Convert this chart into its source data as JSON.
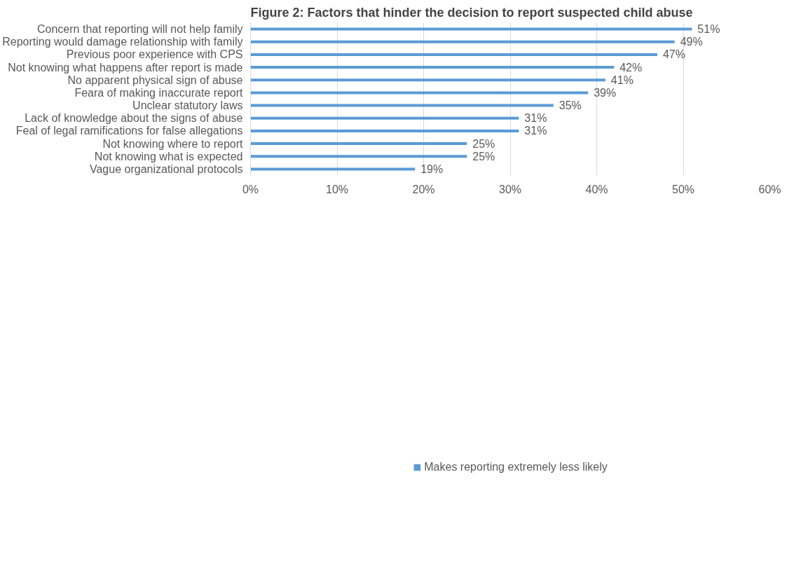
{
  "chart_data": {
    "type": "bar",
    "orientation": "horizontal",
    "title": "Figure 2: Factors that hinder the decision to report suspected child abuse",
    "categories": [
      "Concern that reporting will not help family",
      "Reporting would damage relationship with family",
      "Previous poor experience with CPS",
      "Not knowing what happens after report is made",
      "No apparent physical sign of abuse",
      "Feara of making inaccurate report",
      "Unclear statutory laws",
      "Lack of knowledge about the signs of abuse",
      "Feal of legal ramifications for false allegations",
      "Not knowing where to report",
      "Not knowing what is expected",
      "Vague organizational protocols"
    ],
    "series": [
      {
        "name": "Makes reporting extremely less likely",
        "color": "#5b9bd5",
        "values": [
          51,
          49,
          47,
          42,
          41,
          39,
          35,
          31,
          31,
          25,
          25,
          19
        ],
        "value_labels": [
          "51%",
          "49%",
          "47%",
          "42%",
          "41%",
          "39%",
          "35%",
          "31%",
          "31%",
          "25%",
          "25%",
          "19%"
        ]
      }
    ],
    "xlim": [
      0,
      60
    ],
    "xticks": [
      {
        "value": 0,
        "label": "0%"
      },
      {
        "value": 10,
        "label": "10%"
      },
      {
        "value": 20,
        "label": "20%"
      },
      {
        "value": 30,
        "label": "30%"
      },
      {
        "value": 40,
        "label": "40%"
      },
      {
        "value": 50,
        "label": "50%"
      },
      {
        "value": 60,
        "label": "60%"
      }
    ],
    "grid": "x",
    "legend": "bottom"
  }
}
